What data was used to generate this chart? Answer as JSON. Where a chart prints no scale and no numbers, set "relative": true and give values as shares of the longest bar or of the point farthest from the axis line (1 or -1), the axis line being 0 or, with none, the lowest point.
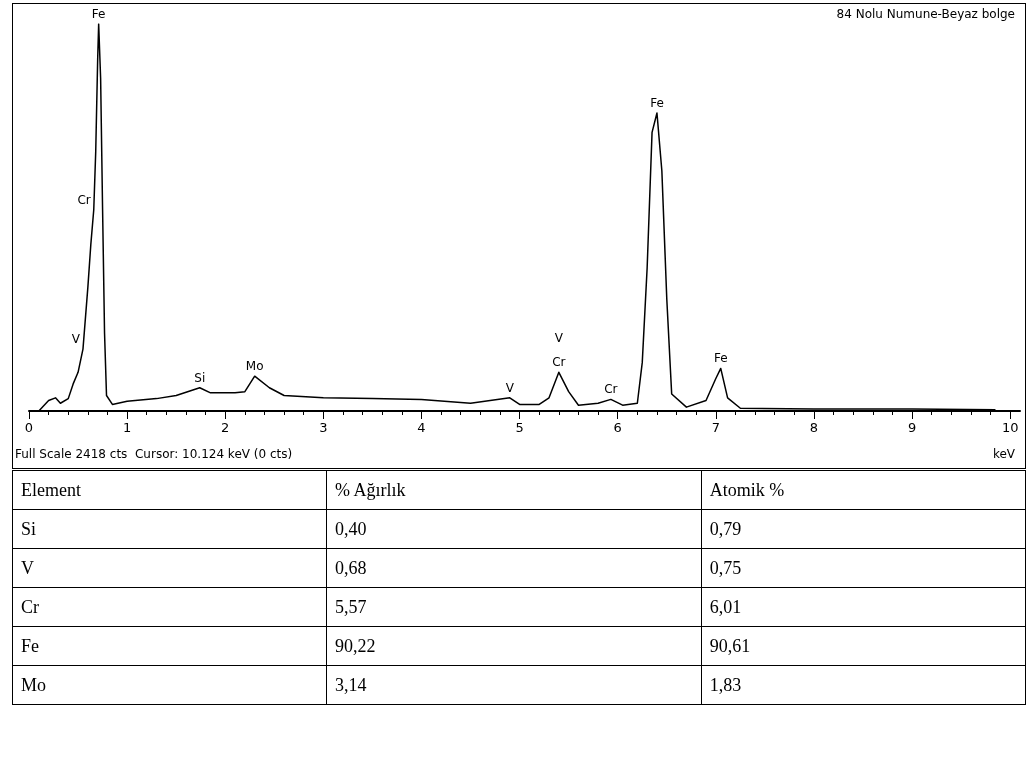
{
  "chart_data": [
    {
      "type": "line",
      "title": "84 Nolu Numune-Beyaz bolge",
      "xlabel": "keV",
      "relative": true,
      "color": "#000000",
      "marker": "none",
      "grid": false,
      "x": [
        0.1,
        0.2,
        0.27,
        0.32,
        0.4,
        0.45,
        0.5,
        0.55,
        0.6,
        0.63,
        0.66,
        0.68,
        0.7,
        0.71,
        0.73,
        0.75,
        0.77,
        0.79,
        0.85,
        1.0,
        1.3,
        1.5,
        1.74,
        1.85,
        2.1,
        2.2,
        2.3,
        2.45,
        2.6,
        3.0,
        3.5,
        4.0,
        4.5,
        4.9,
        5.0,
        5.2,
        5.3,
        5.4,
        5.5,
        5.6,
        5.8,
        5.93,
        6.05,
        6.2,
        6.25,
        6.3,
        6.35,
        6.4,
        6.45,
        6.5,
        6.55,
        6.7,
        6.9,
        7.0,
        7.05,
        7.12,
        7.25,
        8.0,
        9.0,
        9.85
      ],
      "values": [
        0.0,
        0.027,
        0.034,
        0.02,
        0.032,
        0.07,
        0.1,
        0.16,
        0.32,
        0.43,
        0.52,
        0.67,
        0.91,
        1.0,
        0.86,
        0.52,
        0.2,
        0.04,
        0.017,
        0.025,
        0.032,
        0.04,
        0.06,
        0.047,
        0.047,
        0.05,
        0.09,
        0.06,
        0.04,
        0.034,
        0.032,
        0.03,
        0.02,
        0.034,
        0.017,
        0.017,
        0.034,
        0.1,
        0.05,
        0.015,
        0.02,
        0.03,
        0.015,
        0.02,
        0.125,
        0.37,
        0.72,
        0.77,
        0.62,
        0.29,
        0.044,
        0.01,
        0.027,
        0.084,
        0.11,
        0.034,
        0.007,
        0.005,
        0.005,
        0.003
      ],
      "xlim": [
        0,
        10.1
      ],
      "xticks": [
        0,
        1,
        2,
        3,
        4,
        5,
        6,
        7,
        8,
        9,
        10
      ],
      "annotations": [
        {
          "text": "Fe",
          "x": 0.71,
          "y": 1.0
        },
        {
          "text": "Cr",
          "x": 0.66,
          "y": 0.52
        },
        {
          "text": "V",
          "x": 0.55,
          "y": 0.16
        },
        {
          "text": "Si",
          "x": 1.74,
          "y": 0.06
        },
        {
          "text": "Mo",
          "x": 2.3,
          "y": 0.09
        },
        {
          "text": "V",
          "x": 4.9,
          "y": 0.034
        },
        {
          "text": "Cr",
          "x": 5.4,
          "y": 0.1
        },
        {
          "text": "V",
          "x": 5.4,
          "y": 0.1
        },
        {
          "text": "Cr",
          "x": 5.93,
          "y": 0.03
        },
        {
          "text": "Fe",
          "x": 6.4,
          "y": 0.77
        },
        {
          "text": "Fe",
          "x": 7.05,
          "y": 0.11
        },
        "Full Scale 2418 cts  Cursor: 10.124 keV (0 cts)"
      ]
    },
    {
      "type": "other",
      "ylabel": "Element",
      "categories": [
        "% Ağırlık",
        "Atomik %"
      ],
      "y_categories": [
        "Si",
        "V",
        "Cr",
        "Fe",
        "Mo"
      ],
      "cell_labels": [
        [
          "0,40",
          "0,79"
        ],
        [
          "0,68",
          "0,75"
        ],
        [
          "5,57",
          "6,01"
        ],
        [
          "90,22",
          "90,61"
        ],
        [
          "3,14",
          "1,83"
        ]
      ]
    }
  ]
}
